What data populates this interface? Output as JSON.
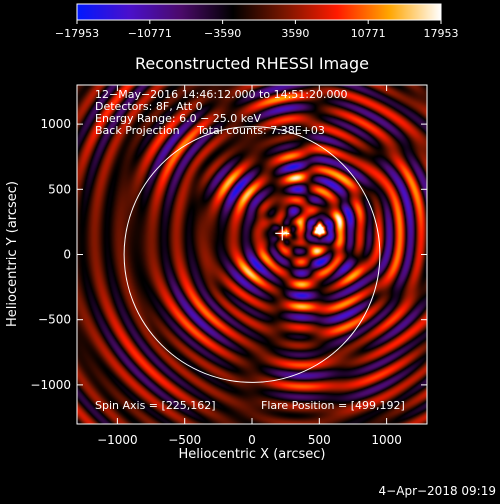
{
  "chart_data": {
    "type": "heatmap",
    "title": "Reconstructed RHESSI Image",
    "xlabel": "Heliocentric X (arcsec)",
    "ylabel": "Heliocentric Y (arcsec)",
    "xlim": [
      -1300,
      1300
    ],
    "ylim": [
      -1300,
      1300
    ],
    "x_ticks": [
      -1000,
      -500,
      0,
      500,
      1000
    ],
    "y_ticks": [
      -1000,
      -500,
      0,
      500,
      1000
    ],
    "x_tick_labels": [
      "−1000",
      "−500",
      "0",
      "500",
      "1000"
    ],
    "y_tick_labels": [
      "−1000",
      "−500",
      "0",
      "500",
      "1000"
    ],
    "colorbar": {
      "min": -17953,
      "max": 17953,
      "tick_labels": [
        "−17953",
        "−10771",
        "−3590",
        "3590",
        "10771",
        "17953"
      ],
      "colors": [
        "#0018ff",
        "#4a10cc",
        "#4b0a6a",
        "#000000",
        "#7a1600",
        "#ff1a00",
        "#ffa500",
        "#ffffff"
      ]
    },
    "annotations": [
      "12−May−2016 14:46:12.000 to 14:51:20.000",
      "Detectors: 8F, Att 0",
      "Energy Range: 6.0 − 25.0 keV",
      "Back Projection     Total counts: 7.38E+03"
    ],
    "spin_axis_label": "Spin Axis = [225,162]",
    "flare_position_label": "Flare Position = [499,192]",
    "solar_limb_radius_arcsec": 950,
    "spin_axis": [
      225,
      162
    ],
    "flare_position": [
      499,
      192
    ],
    "sources": [
      {
        "x": 499,
        "y": 192,
        "level": 1.0
      },
      {
        "x": 250,
        "y": 170,
        "level": 0.82
      }
    ]
  },
  "footer": {
    "timestamp": "4−Apr−2018 09:19"
  }
}
